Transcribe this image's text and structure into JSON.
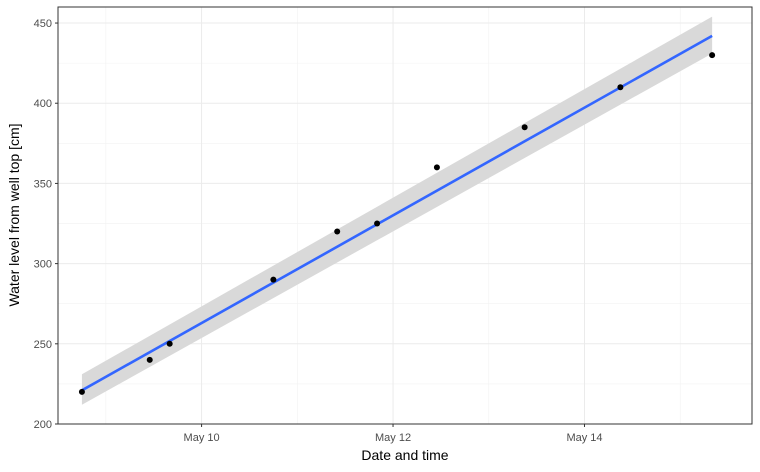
{
  "chart_data": {
    "type": "scatter",
    "xlabel": "Date and time",
    "ylabel": "Water level from well top [cm]",
    "x_ticks": [
      "May 10",
      "May 12",
      "May 14"
    ],
    "y_ticks": [
      200,
      250,
      300,
      350,
      400,
      450
    ],
    "xlim": [
      "2023-05-08 12:00",
      "2023-05-15 18:00"
    ],
    "ylim": [
      200,
      460
    ],
    "grid": true,
    "points": [
      {
        "x": "2023-05-08 18:00",
        "y": 220
      },
      {
        "x": "2023-05-09 11:00",
        "y": 240
      },
      {
        "x": "2023-05-09 16:00",
        "y": 250
      },
      {
        "x": "2023-05-10 18:00",
        "y": 290
      },
      {
        "x": "2023-05-11 10:00",
        "y": 320
      },
      {
        "x": "2023-05-11 20:00",
        "y": 325
      },
      {
        "x": "2023-05-12 11:00",
        "y": 360
      },
      {
        "x": "2023-05-13 09:00",
        "y": 385
      },
      {
        "x": "2023-05-14 09:00",
        "y": 410
      },
      {
        "x": "2023-05-15 08:00",
        "y": 430
      }
    ],
    "fit": {
      "method": "linear",
      "line": [
        {
          "x": "2023-05-08 18:00",
          "y": 221
        },
        {
          "x": "2023-05-15 08:00",
          "y": 442
        }
      ],
      "ci_start": [
        212,
        231
      ],
      "ci_end": [
        431,
        454
      ],
      "color": "#3366ff",
      "band_color": "#d9d9d9"
    },
    "point_color": "#000000"
  }
}
